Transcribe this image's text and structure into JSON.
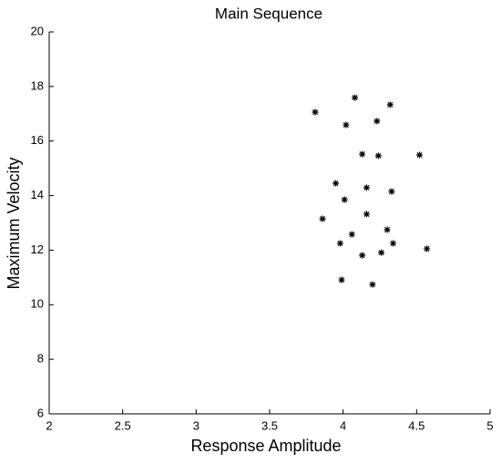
{
  "chart_data": {
    "type": "scatter",
    "title": "Main Sequence",
    "x_label": "Response Amplitude",
    "y_label": "Maximum Velocity",
    "xlim": [
      2,
      5
    ],
    "ylim": [
      6,
      20
    ],
    "xticks": [
      2,
      2.5,
      3,
      3.5,
      4,
      4.5,
      5
    ],
    "yticks": [
      6,
      8,
      10,
      12,
      14,
      16,
      18,
      20
    ],
    "color": "#000000",
    "marker": "asterisk",
    "x": [
      3.81,
      4.08,
      4.32,
      4.02,
      4.23,
      4.13,
      4.24,
      4.52,
      3.95,
      4.16,
      4.33,
      4.01,
      3.86,
      4.16,
      4.3,
      4.06,
      3.98,
      4.34,
      4.57,
      4.13,
      4.26,
      3.99,
      4.2
    ],
    "values": [
      17.06,
      17.59,
      17.33,
      16.59,
      16.73,
      15.52,
      15.46,
      15.49,
      14.45,
      14.29,
      14.15,
      13.85,
      13.15,
      13.32,
      12.75,
      12.58,
      12.25,
      12.25,
      12.05,
      11.81,
      11.91,
      10.91,
      10.74
    ]
  }
}
